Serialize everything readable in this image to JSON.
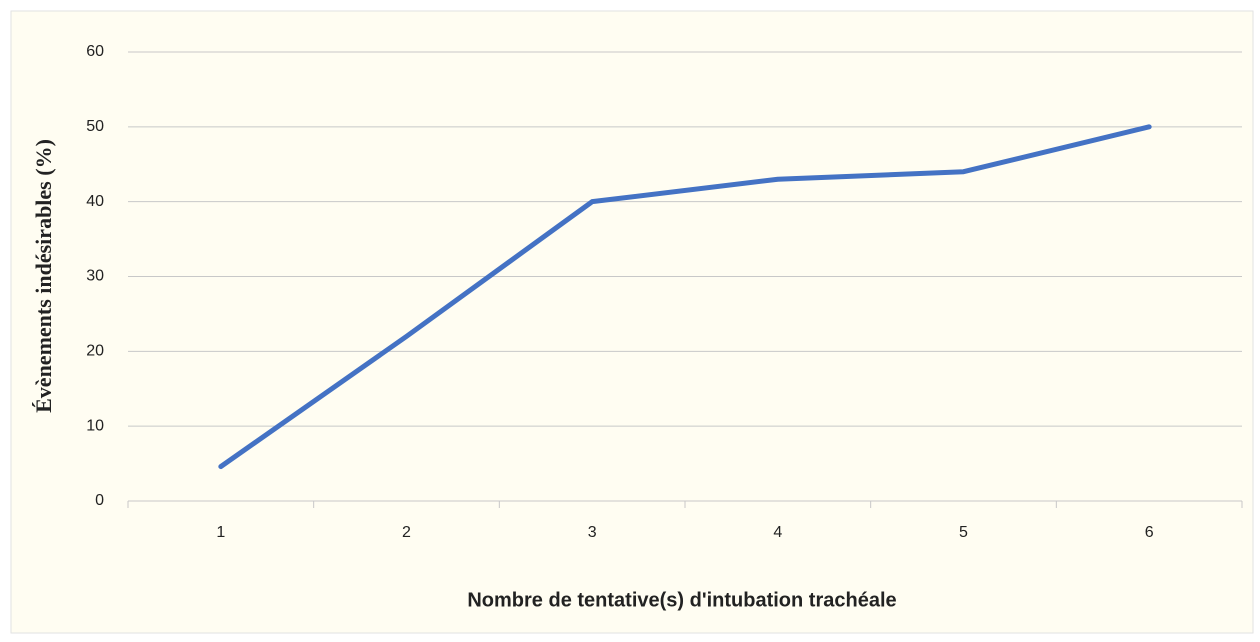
{
  "chart_data": {
    "type": "line",
    "x_label": "Nombre de tentative(s) d'intubation trachéale",
    "y_label": "Évènements indésirables (%)",
    "categories": [
      "1",
      "2",
      "3",
      "4",
      "5",
      "6"
    ],
    "values": [
      4.6,
      22,
      40,
      43,
      44,
      50
    ],
    "color": "#4472c4",
    "ylim": [
      0,
      60
    ],
    "yticks": [
      0,
      10,
      20,
      30,
      40,
      50,
      60
    ],
    "grid": true
  }
}
